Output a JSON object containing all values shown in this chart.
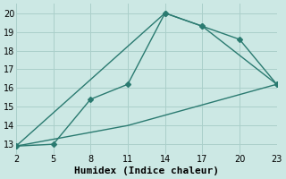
{
  "line1_x": [
    2,
    5,
    8,
    11,
    14,
    17,
    20,
    23
  ],
  "line1_y": [
    12.9,
    13.0,
    15.4,
    16.2,
    20.0,
    19.3,
    18.6,
    16.2
  ],
  "line2_x": [
    2,
    14,
    17,
    23
  ],
  "line2_y": [
    12.9,
    20.0,
    19.3,
    16.2
  ],
  "line3_x": [
    2,
    11,
    23
  ],
  "line3_y": [
    12.9,
    14.0,
    16.2
  ],
  "line_color": "#2a7a70",
  "bg_color": "#cce8e4",
  "grid_color": "#aacfca",
  "xlabel": "Humidex (Indice chaleur)",
  "xlim": [
    2,
    23
  ],
  "ylim": [
    12.5,
    20.5
  ],
  "xticks": [
    2,
    5,
    8,
    11,
    14,
    17,
    20,
    23
  ],
  "yticks": [
    13,
    14,
    15,
    16,
    17,
    18,
    19,
    20
  ],
  "marker": "D",
  "marker_size": 3,
  "line_width": 1.0,
  "font_size": 8
}
